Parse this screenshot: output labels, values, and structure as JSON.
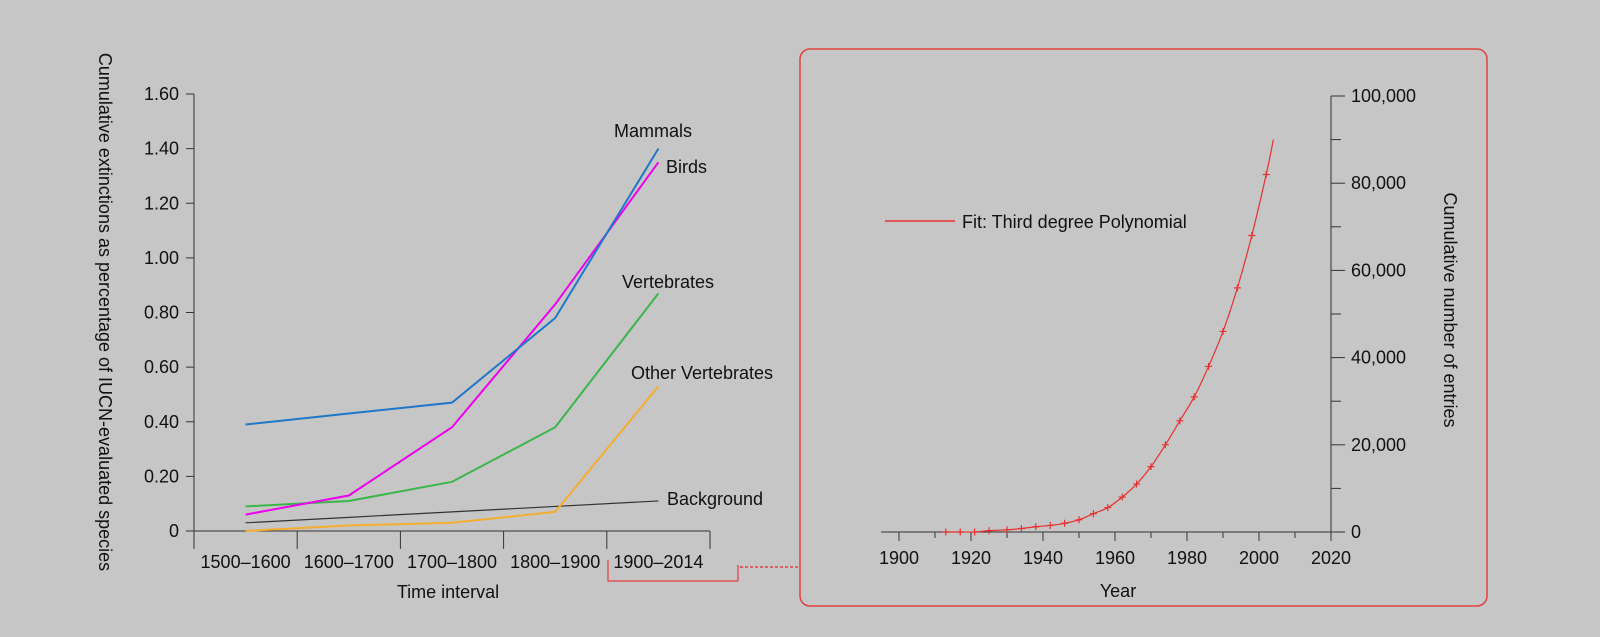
{
  "colors": {
    "background": "#c6c6c6",
    "axis": "#333333",
    "inset_border": "#e24040",
    "fit": "#e8302e",
    "connector": "#e24040"
  },
  "chart_data": [
    {
      "type": "line",
      "xlabel": "Time interval",
      "ylabel": "Cumulative extinctions as percentage of IUCN-evaluated species",
      "categories": [
        "1500–1600",
        "1600–1700",
        "1700–1800",
        "1800–1900",
        "1900–2014"
      ],
      "y_tick_labels": [
        "0",
        "0.20",
        "0.40",
        "0.60",
        "0.80",
        "1.00",
        "1.20",
        "1.40",
        "1.60"
      ],
      "ylim": [
        0,
        1.6
      ],
      "grid": false,
      "series": [
        {
          "name": "Mammals",
          "color": "#1f77c8",
          "values": [
            0.39,
            0.43,
            0.47,
            0.78,
            1.4
          ]
        },
        {
          "name": "Birds",
          "color": "#ee00ee",
          "values": [
            0.06,
            0.13,
            0.38,
            0.83,
            1.35
          ]
        },
        {
          "name": "Vertebrates",
          "color": "#3cb54a",
          "values": [
            0.09,
            0.11,
            0.18,
            0.38,
            0.87
          ]
        },
        {
          "name": "Other Vertebrates",
          "color": "#f5ad30",
          "values": [
            0.0,
            0.02,
            0.03,
            0.07,
            0.53
          ]
        },
        {
          "name": "Background",
          "color": "#333333",
          "values": [
            0.03,
            0.05,
            0.07,
            0.09,
            0.11
          ]
        }
      ]
    },
    {
      "type": "scatter",
      "xlabel": "Year",
      "ylabel": "Cumulative number of entries",
      "x_tick_labels": [
        "1900",
        "1920",
        "1940",
        "1960",
        "1980",
        "2000",
        "2020"
      ],
      "y_tick_labels": [
        "0",
        "20,000",
        "40,000",
        "60,000",
        "80,000",
        "100,000"
      ],
      "xlim": [
        1895,
        2020
      ],
      "ylim": [
        0,
        100000
      ],
      "legend": {
        "label": "Fit: Third degree Polynomial",
        "position": "top-left"
      },
      "points": [
        [
          1913,
          0
        ],
        [
          1917,
          0
        ],
        [
          1921,
          0
        ],
        [
          1925,
          300
        ],
        [
          1930,
          500
        ],
        [
          1934,
          800
        ],
        [
          1938,
          1200
        ],
        [
          1942,
          1500
        ],
        [
          1946,
          2000
        ],
        [
          1950,
          2800
        ],
        [
          1954,
          4200
        ],
        [
          1958,
          5600
        ],
        [
          1962,
          8000
        ],
        [
          1966,
          11000
        ],
        [
          1970,
          15000
        ],
        [
          1974,
          20000
        ],
        [
          1978,
          25500
        ],
        [
          1982,
          31000
        ],
        [
          1986,
          38000
        ],
        [
          1990,
          46000
        ],
        [
          1994,
          56000
        ],
        [
          1998,
          68000
        ],
        [
          2002,
          82000
        ]
      ],
      "fit_range": [
        1913,
        2004
      ]
    }
  ]
}
